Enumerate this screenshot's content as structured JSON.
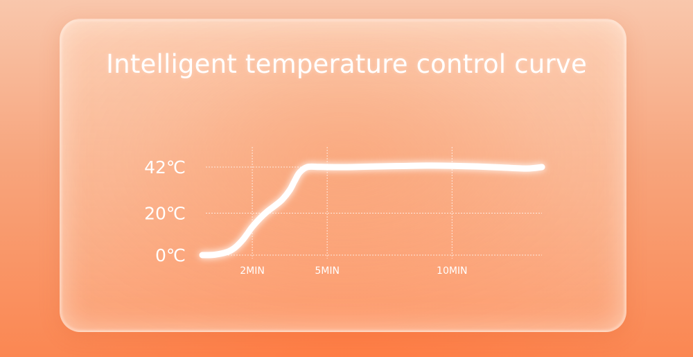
{
  "chart_data": {
    "type": "line",
    "title": "Intelligent temperature control curve",
    "xlabel": "",
    "ylabel": "",
    "y_ticks": [
      {
        "value": 0,
        "label": "0℃"
      },
      {
        "value": 20,
        "label": "20℃"
      },
      {
        "value": 42,
        "label": "42℃"
      }
    ],
    "x_ticks": [
      {
        "value": 2,
        "label": "2MIN"
      },
      {
        "value": 5,
        "label": "5MIN"
      },
      {
        "value": 10,
        "label": "10MIN"
      }
    ],
    "xlim": [
      0,
      13.6
    ],
    "ylim": [
      0,
      42
    ],
    "grid": true,
    "series": [
      {
        "x": [
          0.0,
          0.5,
          1.0,
          1.3,
          1.6,
          1.8,
          2.0,
          2.3,
          2.6,
          2.9,
          3.2,
          3.5,
          3.7,
          3.9,
          4.2,
          4.6,
          5.0,
          6.0,
          7.0,
          8.0,
          9.0,
          10.0,
          11.0,
          12.0,
          13.0,
          13.6
        ],
        "y": [
          0.0,
          0.2,
          1.5,
          3.5,
          7.0,
          10.2,
          13.5,
          17.5,
          20.8,
          23.5,
          26.5,
          31.0,
          35.5,
          39.5,
          42.0,
          42.1,
          42.0,
          42.0,
          42.3,
          42.5,
          42.7,
          42.6,
          42.3,
          41.8,
          41.3,
          42.0
        ]
      }
    ],
    "colors": {
      "line": "#ffffff",
      "grid": "#ffffff",
      "text": "#ffffff"
    }
  }
}
